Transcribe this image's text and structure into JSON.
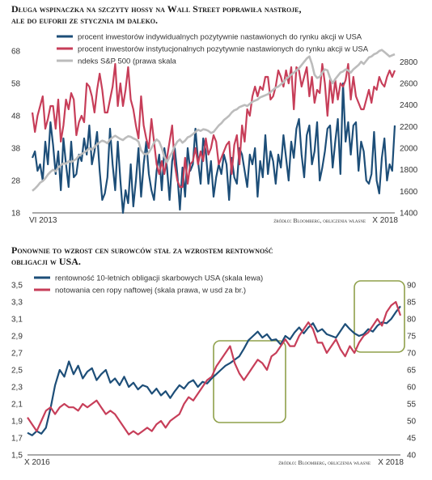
{
  "chart_data": [
    {
      "type": "line",
      "title": "Długa wspinaczka na szczyty hossy na Wall Street poprawiła nastroje, ale do euforii ze stycznia im daleko.",
      "title_lines": [
        "Długa wspinaczka na szczyty hossy na Wall Street poprawiła nastroje,",
        "ale do euforii ze stycznia im daleko."
      ],
      "source": "źródło: Bloomberg, obliczenia własne",
      "x_tick_labels": [
        "VI 2013",
        "X 2018"
      ],
      "y_left": {
        "range": [
          18,
          68
        ],
        "ticks": [
          "18",
          "28",
          "38",
          "48",
          "58",
          "68"
        ]
      },
      "y_right": {
        "range": [
          1400,
          2900
        ],
        "ticks": [
          "1400",
          "1600",
          "1800",
          "2000",
          "2200",
          "2400",
          "2600",
          "2800"
        ]
      },
      "grid": false,
      "legend_position": "top-left",
      "series": [
        {
          "name": "procent inwestorów indywidualnych pozytywnie nastawionych do rynku akcji w USA",
          "color": "#1d4e78",
          "axis": "left",
          "values": [
            35,
            37,
            31,
            33,
            28,
            40,
            33,
            46,
            39,
            30,
            37,
            25,
            41,
            33,
            26,
            40,
            29,
            30,
            36,
            34,
            41,
            36,
            45,
            33,
            37,
            43,
            31,
            22,
            24,
            29,
            44,
            33,
            25,
            40,
            28,
            18,
            25,
            21,
            33,
            20,
            28,
            38,
            23,
            33,
            40,
            30,
            25,
            22,
            31,
            36,
            25,
            38,
            32,
            22,
            34,
            38,
            30,
            19,
            32,
            23,
            38,
            31,
            33,
            44,
            34,
            27,
            41,
            37,
            27,
            34,
            23,
            29,
            33,
            30,
            36,
            33,
            22,
            35,
            29,
            27,
            38,
            36,
            31,
            26,
            36,
            33,
            38,
            23,
            34,
            29,
            42,
            30,
            37,
            34,
            27,
            36,
            32,
            42,
            35,
            28,
            40,
            35,
            44,
            47,
            36,
            29,
            42,
            45,
            33,
            37,
            46,
            28,
            32,
            37,
            44,
            45,
            32,
            40,
            47,
            30,
            58,
            40,
            46,
            36,
            45,
            46,
            31,
            40,
            37,
            28,
            27,
            30,
            43,
            28,
            24,
            35,
            41,
            28,
            33,
            31,
            45
          ]
        },
        {
          "name": "procent inwestorów instytucjonalnych pozytywnie nastawionych do rynku akcji w USA",
          "color": "#c73e59",
          "axis": "left",
          "values": [
            49,
            43,
            48,
            51,
            54,
            44,
            47,
            51,
            51,
            44,
            53,
            40,
            45,
            53,
            50,
            55,
            53,
            42,
            46,
            48,
            46,
            58,
            57,
            54,
            49,
            56,
            61,
            56,
            49,
            49,
            53,
            57,
            64,
            51,
            58,
            51,
            56,
            63,
            53,
            50,
            45,
            41,
            54,
            45,
            41,
            38,
            47,
            40,
            33,
            30,
            34,
            30,
            35,
            40,
            45,
            33,
            28,
            26,
            26,
            35,
            27,
            33,
            34,
            38,
            33,
            37,
            34,
            41,
            36,
            38,
            42,
            40,
            33,
            35,
            37,
            39,
            40,
            30,
            39,
            42,
            33,
            45,
            40,
            50,
            48,
            54,
            57,
            54,
            57,
            56,
            60,
            60,
            53,
            54,
            57,
            62,
            60,
            57,
            62,
            58,
            63,
            50,
            63,
            62,
            57,
            60,
            63,
            54,
            60,
            52,
            56,
            55,
            64,
            58,
            48,
            59,
            52,
            59,
            53,
            58,
            57,
            59,
            64,
            53,
            60,
            54,
            52,
            50,
            50,
            53,
            56,
            52,
            57,
            56,
            60,
            58,
            57,
            60,
            62,
            60,
            62
          ]
        },
        {
          "name": "ndeks S&P 500 (prawa skala",
          "color": "#bcbcbc",
          "axis": "right",
          "values": [
            1605,
            1625,
            1650,
            1680,
            1695,
            1720,
            1755,
            1780,
            1800,
            1785,
            1820,
            1840,
            1860,
            1855,
            1880,
            1870,
            1885,
            1900,
            1930,
            1945,
            1960,
            1975,
            2000,
            1985,
            2010,
            2035,
            2055,
            2070,
            2060,
            2045,
            2080,
            2100,
            2115,
            2100,
            2085,
            2075,
            2095,
            2110,
            2105,
            2090,
            2080,
            2060,
            1980,
            1950,
            1940,
            1960,
            2000,
            2050,
            2080,
            2060,
            2000,
            1920,
            1870,
            1920,
            1960,
            2020,
            2060,
            2080,
            2050,
            2070,
            2100,
            2110,
            2130,
            2150,
            2170,
            2160,
            2175,
            2170,
            2160,
            2140,
            2150,
            2180,
            2210,
            2230,
            2260,
            2280,
            2300,
            2330,
            2350,
            2360,
            2380,
            2390,
            2400,
            2390,
            2410,
            2430,
            2440,
            2450,
            2470,
            2480,
            2490,
            2500,
            2520,
            2540,
            2560,
            2570,
            2590,
            2610,
            2640,
            2660,
            2680,
            2700,
            2720,
            2740,
            2770,
            2800,
            2830,
            2850,
            2780,
            2680,
            2650,
            2660,
            2700,
            2730,
            2720,
            2650,
            2600,
            2640,
            2670,
            2700,
            2710,
            2730,
            2720,
            2700,
            2730,
            2750,
            2770,
            2800,
            2780,
            2810,
            2840,
            2850,
            2870,
            2880,
            2900,
            2910,
            2890,
            2870,
            2850,
            2860,
            2870
          ]
        }
      ]
    },
    {
      "type": "line",
      "title": "Ponownie to wzrost cen surowców stał za wzrostem rentowność obligacji w USA.",
      "title_lines": [
        "Ponownie to wzrost cen surowców stał za wzrostem rentowność",
        "obligacji w USA."
      ],
      "source": "źródło: Bloomberg, obliczenia własne",
      "x_tick_labels": [
        "X 2016",
        "X 2018"
      ],
      "y_left": {
        "range": [
          1.5,
          3.5
        ],
        "ticks": [
          "1,5",
          "1,7",
          "1,9",
          "2,1",
          "2,3",
          "2,5",
          "2,7",
          "2,9",
          "3,1",
          "3,3",
          "3,5"
        ]
      },
      "y_right": {
        "range": [
          40,
          90
        ],
        "ticks": [
          "40",
          "45",
          "50",
          "55",
          "60",
          "65",
          "70",
          "75",
          "80",
          "85",
          "90"
        ]
      },
      "grid": false,
      "legend_position": "top-left",
      "series": [
        {
          "name": "rentowność 10-letnich obligacji skarbowych USA (skala lewa)",
          "color": "#1d4e78",
          "axis": "left",
          "values": [
            1.76,
            1.73,
            1.78,
            1.75,
            1.82,
            2.05,
            2.32,
            2.5,
            2.42,
            2.6,
            2.45,
            2.55,
            2.4,
            2.48,
            2.52,
            2.38,
            2.45,
            2.5,
            2.35,
            2.4,
            2.32,
            2.42,
            2.3,
            2.35,
            2.27,
            2.32,
            2.3,
            2.22,
            2.28,
            2.2,
            2.25,
            2.17,
            2.25,
            2.32,
            2.28,
            2.35,
            2.38,
            2.3,
            2.36,
            2.34,
            2.4,
            2.45,
            2.5,
            2.55,
            2.58,
            2.62,
            2.66,
            2.75,
            2.85,
            2.9,
            2.95,
            2.88,
            2.92,
            2.85,
            2.86,
            2.8,
            2.9,
            2.86,
            2.94,
            3.0,
            2.93,
            3.0,
            3.05,
            2.95,
            2.98,
            2.92,
            2.9,
            2.88,
            2.96,
            3.04,
            2.98,
            2.93,
            2.9,
            2.92,
            2.98,
            2.95,
            3.02,
            3.06,
            3.05,
            3.1,
            3.18,
            3.25
          ]
        },
        {
          "name": "notowania cen ropy naftowej (skala prawa, w usd za br.)",
          "color": "#c73e59",
          "axis": "right",
          "values": [
            51,
            49,
            47,
            50,
            53,
            54,
            52,
            54,
            55,
            54,
            54,
            53,
            55,
            54,
            55,
            56,
            54,
            52,
            53,
            52,
            50,
            48,
            46,
            47,
            46,
            47,
            48,
            47,
            49,
            50,
            48,
            50,
            51,
            52,
            55,
            57,
            56,
            58,
            60,
            62,
            63,
            66,
            68,
            70,
            72,
            67,
            64,
            62,
            64,
            66,
            68,
            67,
            65,
            69,
            70,
            72,
            74,
            72,
            72,
            75,
            77,
            79,
            77,
            73,
            73,
            70,
            72,
            74,
            71,
            69,
            72,
            70,
            73,
            75,
            76,
            78,
            80,
            78,
            82,
            84,
            85,
            81
          ]
        }
      ]
    }
  ]
}
